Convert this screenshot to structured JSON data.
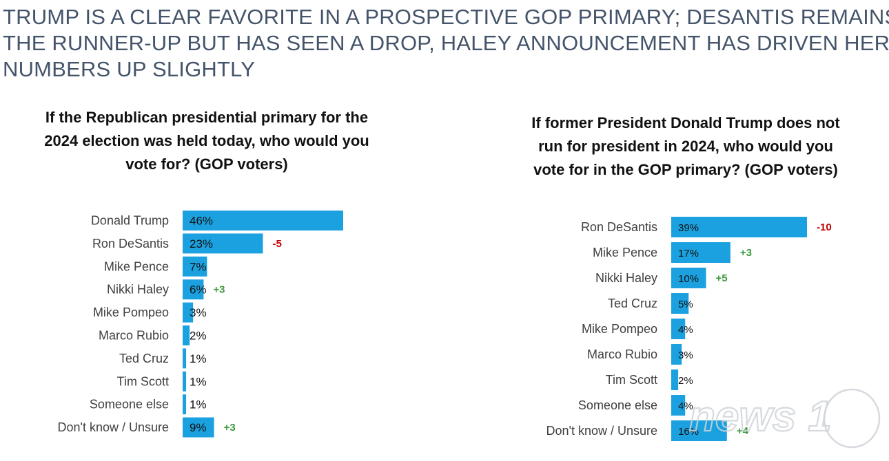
{
  "headline": {
    "lines": [
      "TRUMP IS A CLEAR FAVORITE IN A PROSPECTIVE GOP PRIMARY; DESANTIS REMAINS",
      "THE RUNNER-UP BUT HAS SEEN A DROP, HALEY ANNOUNCEMENT HAS DRIVEN HER",
      "NUMBERS UP SLIGHTLY"
    ]
  },
  "colors": {
    "bar": "#1ba1df",
    "headline": "#44546a",
    "negative_change": "#c00000",
    "positive_change": "#3a9a3a"
  },
  "watermark": {
    "text": "news 1",
    "icon": "news1-logo"
  },
  "chart_data": [
    {
      "type": "bar",
      "orientation": "horizontal",
      "title": "If the Republican presidential primary for the 2024 election was held today, who would you vote for? (GOP voters)",
      "title_lines": [
        "If the Republican presidential primary for the",
        "2024 election was held today, who would you",
        "vote for? (GOP voters)"
      ],
      "unit": "%",
      "categories": [
        "Donald Trump",
        "Ron DeSantis",
        "Mike Pence",
        "Nikki Haley",
        "Mike Pompeo",
        "Marco Rubio",
        "Ted Cruz",
        "Tim Scott",
        "Someone else",
        "Don't know / Unsure"
      ],
      "values": [
        46,
        23,
        7,
        6,
        3,
        2,
        1,
        1,
        1,
        9
      ],
      "value_labels": [
        "46%",
        "23%",
        "7%",
        "6%",
        "3%",
        "2%",
        "1%",
        "1%",
        "1%",
        "9%"
      ],
      "changes": [
        "",
        "-5",
        "",
        "+3",
        "",
        "",
        "",
        "",
        "",
        "+3"
      ],
      "xlim": [
        0,
        46
      ],
      "grid": false,
      "legend": "none"
    },
    {
      "type": "bar",
      "orientation": "horizontal",
      "title": "If former President Donald Trump does not run for president in 2024, who would you vote for in the GOP primary? (GOP voters)",
      "title_lines": [
        "If former President Donald Trump does not",
        "run for president in 2024, who would you",
        "vote for in the GOP primary? (GOP voters)"
      ],
      "unit": "%",
      "categories": [
        "Ron DeSantis",
        "Mike Pence",
        "Nikki Haley",
        "Ted Cruz",
        "Mike Pompeo",
        "Marco Rubio",
        "Tim Scott",
        "Someone else",
        "Don't know / Unsure"
      ],
      "values": [
        39,
        17,
        10,
        5,
        4,
        3,
        2,
        4,
        16
      ],
      "value_labels": [
        "39%",
        "17%",
        "10%",
        "5%",
        "4%",
        "3%",
        "2%",
        "4%",
        "16%"
      ],
      "changes": [
        "-10",
        "+3",
        "+5",
        "",
        "",
        "",
        "",
        "",
        "+4"
      ],
      "xlim": [
        0,
        39
      ],
      "grid": false,
      "legend": "none"
    }
  ]
}
